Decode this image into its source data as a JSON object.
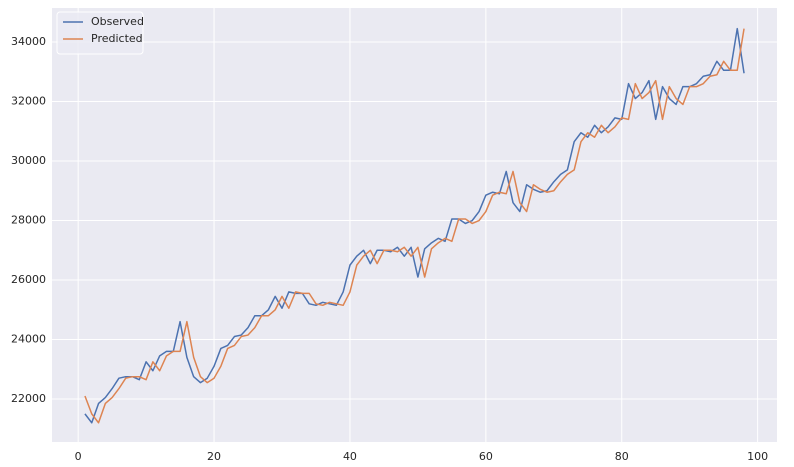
{
  "chart_data": {
    "type": "line",
    "x": [
      1,
      2,
      3,
      4,
      5,
      6,
      7,
      8,
      9,
      10,
      11,
      12,
      13,
      14,
      15,
      16,
      17,
      18,
      19,
      20,
      21,
      22,
      23,
      24,
      25,
      26,
      27,
      28,
      29,
      30,
      31,
      32,
      33,
      34,
      35,
      36,
      37,
      38,
      39,
      40,
      41,
      42,
      43,
      44,
      45,
      46,
      47,
      48,
      49,
      50,
      51,
      52,
      53,
      54,
      55,
      56,
      57,
      58,
      59,
      60,
      61,
      62,
      63,
      64,
      65,
      66,
      67,
      68,
      69,
      70,
      71,
      72,
      73,
      74,
      75,
      76,
      77,
      78,
      79,
      80,
      81,
      82,
      83,
      84,
      85,
      86,
      87,
      88,
      89,
      90,
      91,
      92,
      93,
      94,
      95,
      96,
      97,
      98
    ],
    "series": [
      {
        "name": "Observed",
        "color": "#4c72b0",
        "values": [
          21500,
          21200,
          21850,
          22050,
          22350,
          22700,
          22750,
          22750,
          22650,
          23250,
          22950,
          23450,
          23600,
          23600,
          24600,
          23400,
          22750,
          22550,
          22700,
          23100,
          23700,
          23800,
          24100,
          24150,
          24400,
          24800,
          24800,
          25000,
          25450,
          25050,
          25600,
          25550,
          25550,
          25200,
          25150,
          25250,
          25200,
          25150,
          25600,
          26500,
          26800,
          27000,
          26550,
          27000,
          27000,
          26950,
          27100,
          26800,
          27100,
          26100,
          27050,
          27250,
          27400,
          27300,
          28050,
          28050,
          27900,
          28000,
          28300,
          28850,
          28950,
          28900,
          29650,
          28600,
          28300,
          29200,
          29050,
          28950,
          29000,
          29300,
          29550,
          29700,
          30650,
          30950,
          30800,
          31200,
          30950,
          31150,
          31450,
          31400,
          32600,
          32100,
          32300,
          32700,
          31400,
          32500,
          32100,
          31900,
          32500,
          32500,
          32600,
          32850,
          32900,
          33350,
          33050,
          33050,
          34450,
          32950
        ]
      },
      {
        "name": "Predicted",
        "color": "#dd8452",
        "values": [
          22100,
          21500,
          21200,
          21850,
          22050,
          22350,
          22700,
          22750,
          22750,
          22650,
          23250,
          22950,
          23450,
          23600,
          23600,
          24600,
          23400,
          22750,
          22550,
          22700,
          23100,
          23700,
          23800,
          24100,
          24150,
          24400,
          24800,
          24800,
          25000,
          25450,
          25050,
          25600,
          25550,
          25550,
          25200,
          25150,
          25250,
          25200,
          25150,
          25600,
          26500,
          26800,
          27000,
          26550,
          27000,
          27000,
          26950,
          27100,
          26800,
          27100,
          26100,
          27050,
          27250,
          27400,
          27300,
          28050,
          28050,
          27900,
          28000,
          28300,
          28850,
          28950,
          28900,
          29650,
          28600,
          28300,
          29200,
          29050,
          28950,
          29000,
          29300,
          29550,
          29700,
          30650,
          30950,
          30800,
          31200,
          30950,
          31150,
          31450,
          31400,
          32600,
          32100,
          32300,
          32700,
          31400,
          32500,
          32100,
          31900,
          32500,
          32500,
          32600,
          32850,
          32900,
          33350,
          33050,
          33050,
          34450
        ]
      }
    ],
    "xlim": [
      -3.85,
      102.85
    ],
    "ylim": [
      20555,
      35143
    ],
    "xticks": [
      0,
      20,
      40,
      60,
      80,
      100
    ],
    "yticks": [
      22000,
      24000,
      26000,
      28000,
      30000,
      32000,
      34000
    ],
    "grid": true,
    "legend": "upper-left"
  }
}
